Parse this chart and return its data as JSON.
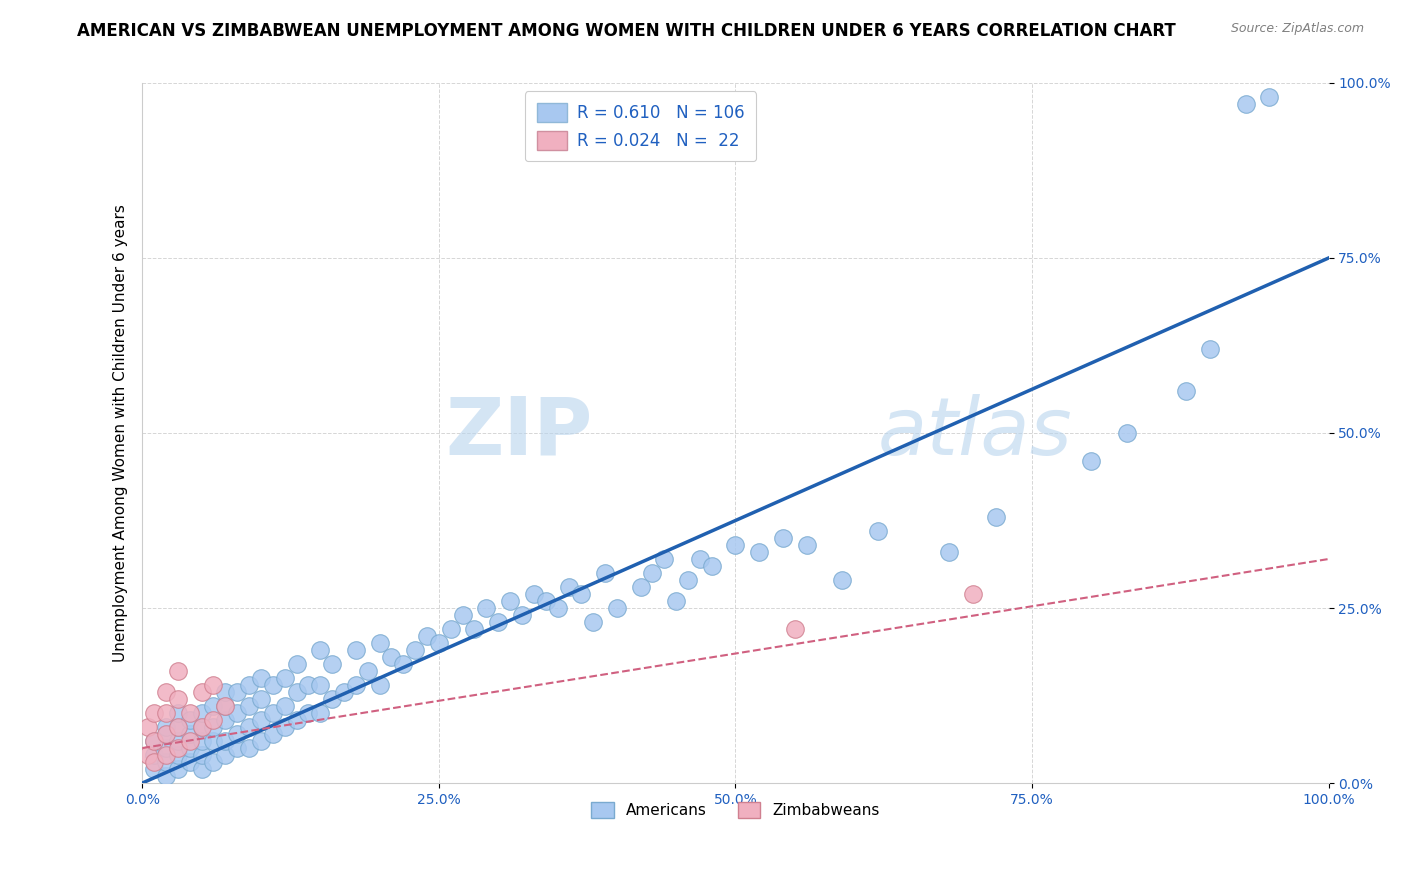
{
  "title": "AMERICAN VS ZIMBABWEAN UNEMPLOYMENT AMONG WOMEN WITH CHILDREN UNDER 6 YEARS CORRELATION CHART",
  "source": "Source: ZipAtlas.com",
  "ylabel": "Unemployment Among Women with Children Under 6 years",
  "xlim": [
    0,
    1
  ],
  "ylim": [
    0,
    1
  ],
  "blue_scatter_x": [
    0.01,
    0.01,
    0.01,
    0.02,
    0.02,
    0.02,
    0.02,
    0.02,
    0.03,
    0.03,
    0.03,
    0.03,
    0.03,
    0.04,
    0.04,
    0.04,
    0.04,
    0.05,
    0.05,
    0.05,
    0.05,
    0.05,
    0.06,
    0.06,
    0.06,
    0.06,
    0.07,
    0.07,
    0.07,
    0.07,
    0.07,
    0.08,
    0.08,
    0.08,
    0.08,
    0.09,
    0.09,
    0.09,
    0.09,
    0.1,
    0.1,
    0.1,
    0.1,
    0.11,
    0.11,
    0.11,
    0.12,
    0.12,
    0.12,
    0.13,
    0.13,
    0.13,
    0.14,
    0.14,
    0.15,
    0.15,
    0.15,
    0.16,
    0.16,
    0.17,
    0.18,
    0.18,
    0.19,
    0.2,
    0.2,
    0.21,
    0.22,
    0.23,
    0.24,
    0.25,
    0.26,
    0.27,
    0.28,
    0.29,
    0.3,
    0.31,
    0.32,
    0.33,
    0.34,
    0.35,
    0.36,
    0.37,
    0.38,
    0.39,
    0.4,
    0.42,
    0.43,
    0.44,
    0.45,
    0.46,
    0.47,
    0.48,
    0.5,
    0.52,
    0.54,
    0.56,
    0.59,
    0.62,
    0.68,
    0.72,
    0.8,
    0.83,
    0.88,
    0.9,
    0.93,
    0.95
  ],
  "blue_scatter_y": [
    0.02,
    0.04,
    0.06,
    0.01,
    0.03,
    0.05,
    0.07,
    0.08,
    0.02,
    0.04,
    0.06,
    0.08,
    0.1,
    0.03,
    0.05,
    0.07,
    0.09,
    0.02,
    0.04,
    0.06,
    0.08,
    0.1,
    0.03,
    0.06,
    0.08,
    0.11,
    0.04,
    0.06,
    0.09,
    0.11,
    0.13,
    0.05,
    0.07,
    0.1,
    0.13,
    0.05,
    0.08,
    0.11,
    0.14,
    0.06,
    0.09,
    0.12,
    0.15,
    0.07,
    0.1,
    0.14,
    0.08,
    0.11,
    0.15,
    0.09,
    0.13,
    0.17,
    0.1,
    0.14,
    0.1,
    0.14,
    0.19,
    0.12,
    0.17,
    0.13,
    0.14,
    0.19,
    0.16,
    0.14,
    0.2,
    0.18,
    0.17,
    0.19,
    0.21,
    0.2,
    0.22,
    0.24,
    0.22,
    0.25,
    0.23,
    0.26,
    0.24,
    0.27,
    0.26,
    0.25,
    0.28,
    0.27,
    0.23,
    0.3,
    0.25,
    0.28,
    0.3,
    0.32,
    0.26,
    0.29,
    0.32,
    0.31,
    0.34,
    0.33,
    0.35,
    0.34,
    0.29,
    0.36,
    0.33,
    0.38,
    0.46,
    0.5,
    0.56,
    0.62,
    0.97,
    0.98
  ],
  "pink_scatter_x": [
    0.005,
    0.005,
    0.01,
    0.01,
    0.01,
    0.02,
    0.02,
    0.02,
    0.02,
    0.03,
    0.03,
    0.03,
    0.03,
    0.04,
    0.04,
    0.05,
    0.05,
    0.06,
    0.06,
    0.07,
    0.55,
    0.7
  ],
  "pink_scatter_y": [
    0.04,
    0.08,
    0.03,
    0.06,
    0.1,
    0.04,
    0.07,
    0.1,
    0.13,
    0.05,
    0.08,
    0.12,
    0.16,
    0.06,
    0.1,
    0.08,
    0.13,
    0.09,
    0.14,
    0.11,
    0.22,
    0.27
  ],
  "blue_line_x": [
    0.0,
    1.0
  ],
  "blue_line_y": [
    0.0,
    0.75
  ],
  "pink_line_x": [
    0.0,
    1.0
  ],
  "pink_line_y": [
    0.05,
    0.32
  ],
  "blue_scatter_color": "#a8c8f0",
  "pink_scatter_color": "#f0b0c0",
  "blue_line_color": "#2060b0",
  "pink_line_color": "#d06080",
  "legend_box_blue": "#a8c8f0",
  "legend_box_pink": "#f0b0c0",
  "legend_text_color": "#2060c0",
  "title_fontsize": 12,
  "axis_label_fontsize": 11,
  "tick_fontsize": 10,
  "watermark_part1": "ZIP",
  "watermark_part2": "atlas",
  "watermark_color": "#b8d4ee",
  "legend_R_blue": "0.610",
  "legend_N_blue": "106",
  "legend_R_pink": "0.024",
  "legend_N_pink": "22",
  "bottom_legend_Americans": "Americans",
  "bottom_legend_Zimbabweans": "Zimbabweans"
}
